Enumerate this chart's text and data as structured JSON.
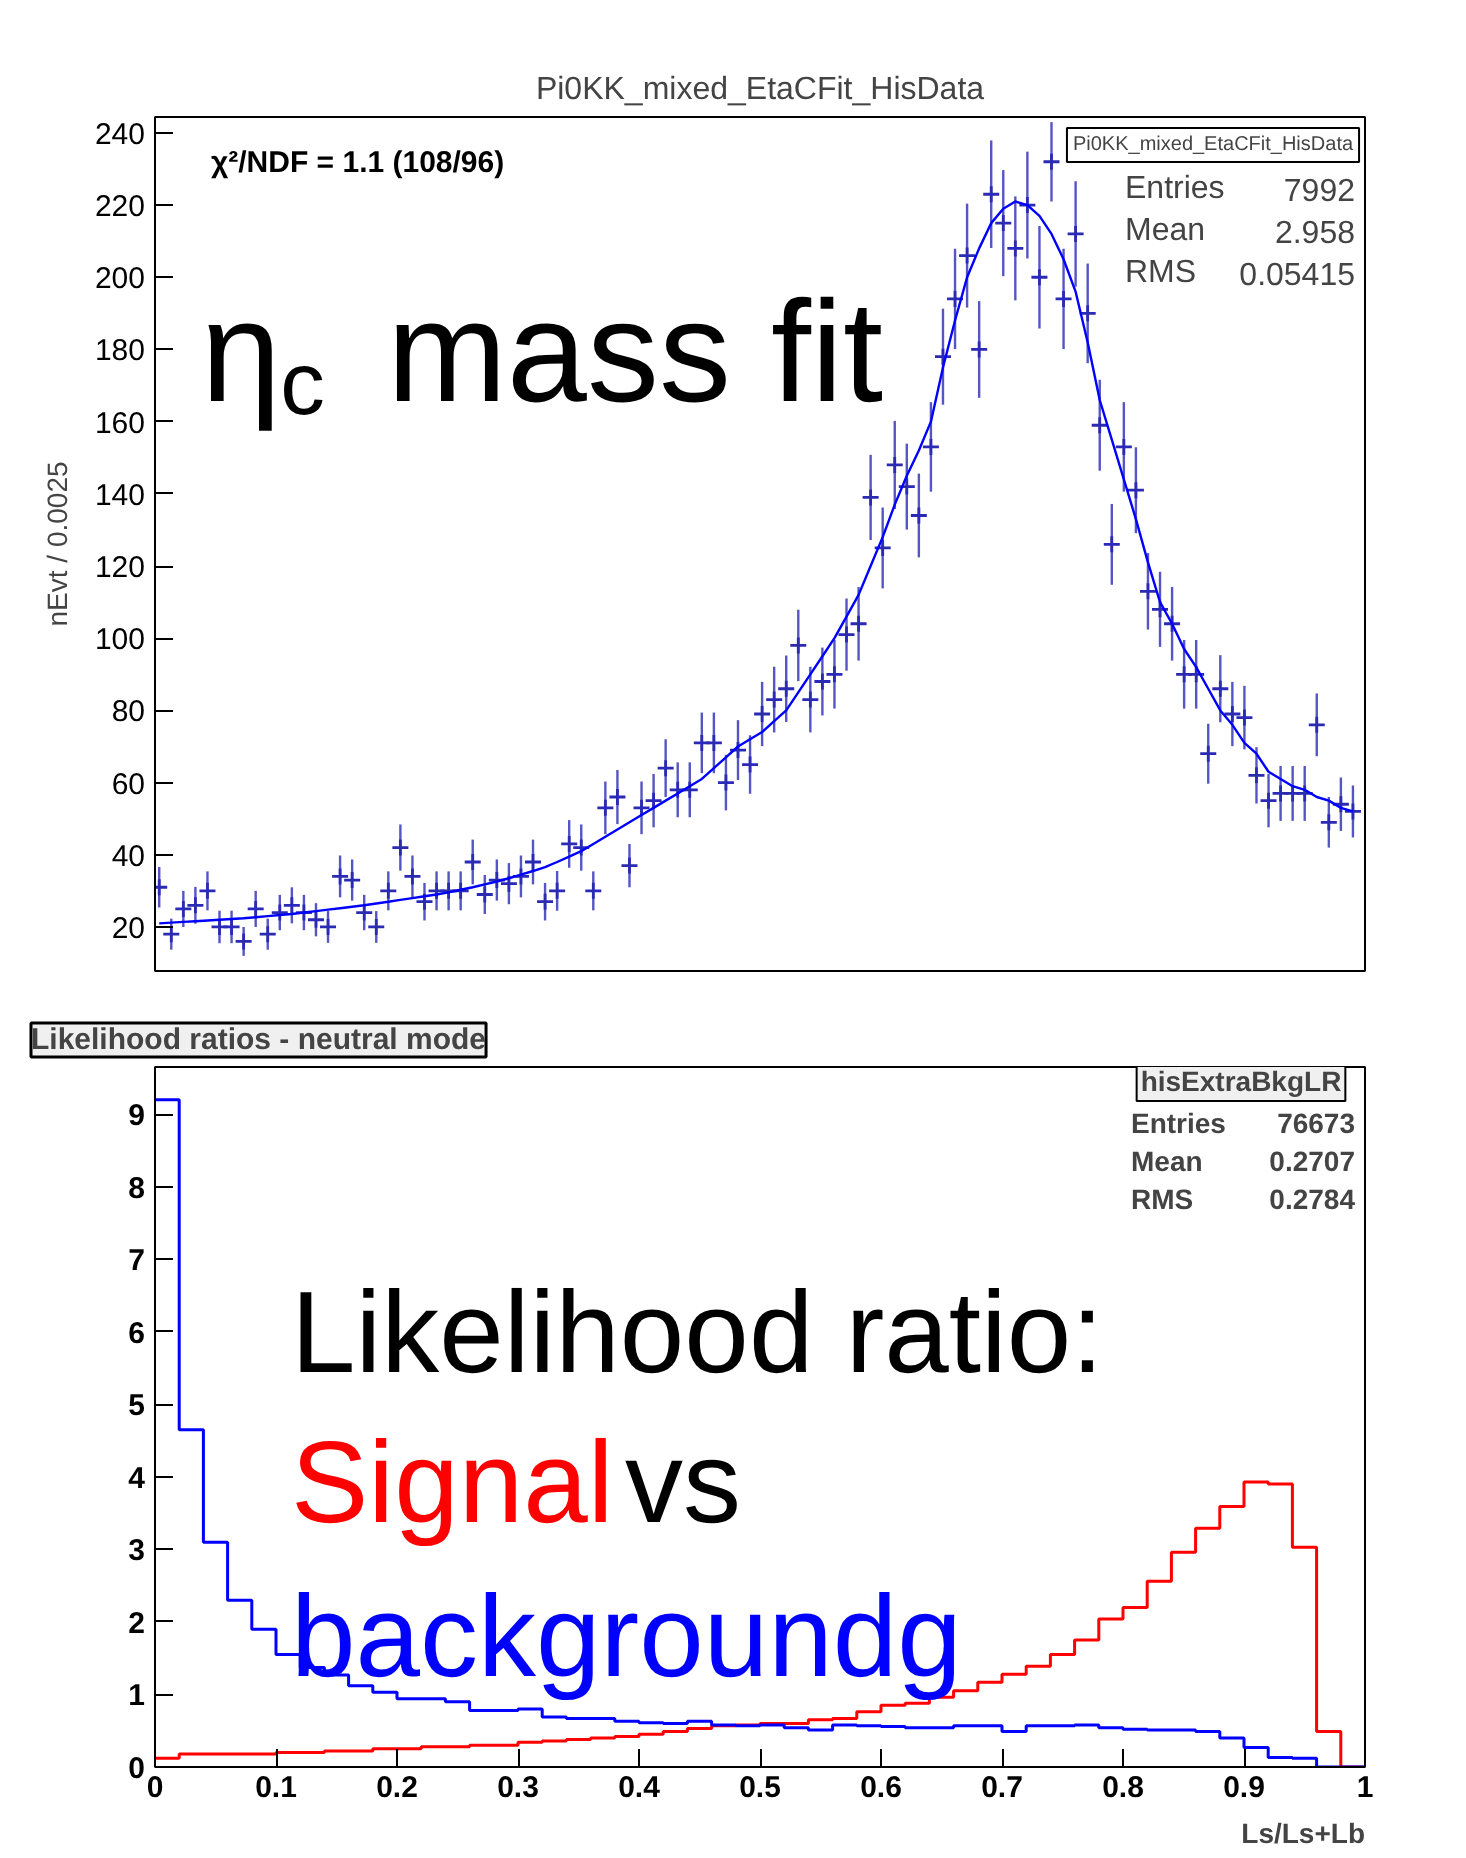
{
  "chart_data": [
    {
      "type": "scatter",
      "title": "Pi0KK_mixed_EtaCFit_HisData",
      "ylabel": "nEvt / 0.0025",
      "categories": [
        null,
        null,
        null,
        null,
        null,
        null,
        null,
        null,
        null,
        null,
        null,
        null,
        null,
        null,
        null,
        null,
        null,
        null,
        null,
        null,
        null,
        null,
        null,
        null,
        null,
        null,
        null,
        null,
        null,
        null,
        null,
        null,
        null,
        null,
        null,
        null,
        null,
        null,
        null,
        null,
        null,
        null,
        null,
        null,
        null,
        null,
        null,
        null,
        null,
        null,
        null,
        null,
        null,
        null,
        null,
        null,
        null,
        null,
        null,
        null,
        null,
        null,
        null,
        null,
        null,
        null,
        null,
        null,
        null,
        null,
        null,
        null,
        null,
        null,
        null,
        null,
        null,
        null,
        null,
        null,
        null,
        null,
        null,
        null,
        null,
        null,
        null,
        null,
        null,
        null,
        null,
        null,
        null,
        null,
        null,
        null,
        null,
        null,
        null,
        null
      ],
      "ylim": [
        7.8,
        244.4
      ],
      "yticks": [
        20,
        40,
        60,
        80,
        100,
        120,
        140,
        160,
        180,
        200,
        220,
        240
      ],
      "tick_labels": "y",
      "grid": false,
      "series": [
        {
          "marker": "cross",
          "color": "#2a2ab4",
          "values": [
            31,
            18,
            25,
            26,
            30,
            20,
            20,
            16,
            25,
            18,
            24,
            26,
            24,
            22,
            20,
            34,
            33,
            24,
            20,
            30,
            42,
            34,
            27,
            30,
            30,
            30,
            38,
            29,
            33,
            32,
            34,
            38,
            27,
            30,
            43,
            42,
            30,
            53,
            56,
            37,
            53,
            55,
            64,
            58,
            58,
            71,
            71,
            60,
            69,
            65,
            79,
            83,
            86,
            98,
            83,
            88,
            90,
            101,
            104,
            139,
            125,
            148,
            142,
            134,
            153,
            178,
            194,
            206,
            180,
            223,
            215,
            208,
            220,
            200,
            232,
            194,
            212,
            190,
            159,
            126,
            153,
            141,
            113,
            108,
            104,
            90,
            90,
            68,
            86,
            79,
            78,
            62,
            55,
            57,
            57,
            57,
            76,
            49,
            54,
            52
          ],
          "errors": [
            5.6,
            4.3,
            5,
            5.1,
            5.4,
            4.5,
            4.5,
            4,
            5,
            4.3,
            4.9,
            5,
            4.9,
            4.6,
            4.4,
            5.8,
            5.7,
            4.9,
            4.4,
            5.4,
            6.4,
            5.8,
            5.2,
            5.4,
            5.4,
            5.4,
            6.2,
            5.4,
            5.7,
            5.7,
            5.8,
            6.2,
            5.2,
            5.5,
            6.6,
            6.4,
            5.4,
            7.3,
            7.5,
            6,
            7.3,
            7.4,
            8,
            7.6,
            7.6,
            8.4,
            8.4,
            7.7,
            8.3,
            8.1,
            8.9,
            9.1,
            9.2,
            9.9,
            9.1,
            9.4,
            9.5,
            10,
            10.2,
            11.8,
            11.2,
            12.2,
            11.9,
            11.6,
            12.4,
            13.3,
            13.9,
            14.4,
            13.4,
            14.9,
            14.7,
            14.4,
            14.8,
            14.2,
            11,
            13.9,
            14.6,
            13.8,
            12.6,
            11.2,
            12.4,
            11.9,
            10.6,
            10.4,
            10.2,
            9.5,
            9.5,
            8.3,
            9.3,
            8.9,
            8.8,
            7.8,
            7.4,
            7.6,
            7.6,
            7.6,
            8.7,
            7,
            7.4,
            7.2
          ]
        },
        {
          "type": "line",
          "color": "#0000ff",
          "values": [
            21,
            21.2,
            21.4,
            21.6,
            21.8,
            22,
            22.2,
            22.4,
            22.7,
            23,
            23.3,
            23.6,
            24,
            24.4,
            24.8,
            25.2,
            25.6,
            26,
            26.5,
            27,
            27.5,
            28,
            28.5,
            29,
            29.6,
            30.3,
            31,
            31.8,
            32.6,
            33.5,
            34.5,
            35.5,
            36.6,
            38,
            39.5,
            41,
            43,
            45,
            47,
            49,
            51,
            53,
            55,
            57,
            59,
            61,
            64,
            67,
            70,
            72,
            74,
            77,
            80,
            85,
            90,
            95,
            100,
            106,
            112,
            120,
            128,
            137,
            145,
            152,
            160,
            175,
            188,
            200,
            208,
            215,
            219,
            221,
            220,
            217,
            212,
            205,
            196,
            182,
            166,
            155,
            144,
            133,
            121,
            110,
            104,
            97,
            92,
            86,
            80,
            76,
            71,
            68,
            63,
            61,
            59,
            58,
            56,
            55,
            53,
            52
          ]
        }
      ],
      "annotations": [
        "χ²/NDF = 1.1 (108/96)",
        "η$_{c}$ mass fit",
        "Pi0KK_mixed_EtaCFit_HisData",
        "Entries",
        "7992",
        "Mean",
        "2.958",
        "RMS",
        "0.05415"
      ]
    },
    {
      "type": "histogram",
      "title": "Likelihood ratios - neutral mode",
      "xlabel": "Ls/Ls+Lb",
      "bins": [
        0,
        0.02,
        0.04,
        0.06,
        0.08,
        0.1,
        0.12,
        0.14,
        0.16,
        0.18,
        0.2,
        0.22,
        0.24,
        0.26,
        0.28,
        0.3,
        0.32,
        0.34,
        0.36,
        0.38,
        0.4,
        0.42,
        0.44,
        0.46,
        0.48,
        0.5,
        0.52,
        0.54,
        0.56,
        0.58,
        0.6,
        0.62,
        0.64,
        0.66,
        0.68,
        0.7,
        0.72,
        0.74,
        0.76,
        0.78,
        0.8,
        0.82,
        0.84,
        0.86,
        0.88,
        0.9,
        0.92,
        0.94,
        0.96,
        0.98,
        1
      ],
      "xlim": [
        0,
        1
      ],
      "xticks": [
        0,
        0.1,
        0.2,
        0.3,
        0.4,
        0.5,
        0.6,
        0.7,
        0.8,
        0.9,
        1
      ],
      "ylim": [
        0,
        9.65
      ],
      "yticks": [
        0,
        1,
        2,
        3,
        4,
        5,
        6,
        7,
        8,
        9
      ],
      "grid": false,
      "series": [
        {
          "name": "Signal",
          "color": "#ff0000",
          "values": [
            0.12,
            0.18,
            0.18,
            0.18,
            0.18,
            0.2,
            0.2,
            0.22,
            0.22,
            0.25,
            0.25,
            0.28,
            0.28,
            0.3,
            0.3,
            0.34,
            0.36,
            0.38,
            0.4,
            0.42,
            0.45,
            0.49,
            0.53,
            0.57,
            0.58,
            0.6,
            0.6,
            0.65,
            0.67,
            0.76,
            0.85,
            0.88,
            0.96,
            1.05,
            1.17,
            1.28,
            1.39,
            1.55,
            1.75,
            2.04,
            2.2,
            2.56,
            2.96,
            3.29,
            3.59,
            3.93,
            3.9,
            3.03,
            0.49,
            0
          ]
        },
        {
          "name": "backgroundg",
          "color": "#0000ff",
          "values": [
            9.2,
            4.65,
            3.1,
            2.3,
            1.9,
            1.55,
            1.37,
            1.27,
            1.12,
            1.03,
            0.94,
            0.94,
            0.9,
            0.78,
            0.78,
            0.8,
            0.69,
            0.67,
            0.67,
            0.63,
            0.61,
            0.6,
            0.63,
            0.58,
            0.57,
            0.58,
            0.54,
            0.51,
            0.58,
            0.57,
            0.56,
            0.54,
            0.54,
            0.57,
            0.57,
            0.49,
            0.57,
            0.57,
            0.58,
            0.54,
            0.52,
            0.51,
            0.51,
            0.49,
            0.4,
            0.27,
            0.13,
            0.12,
            0,
            0
          ]
        }
      ],
      "annotations": [
        "hisExtraBkgLR",
        "Entries",
        "76673",
        "Mean",
        "0.2707",
        "RMS",
        "0.2784",
        "Likelihood ratio:",
        "vs"
      ]
    }
  ]
}
